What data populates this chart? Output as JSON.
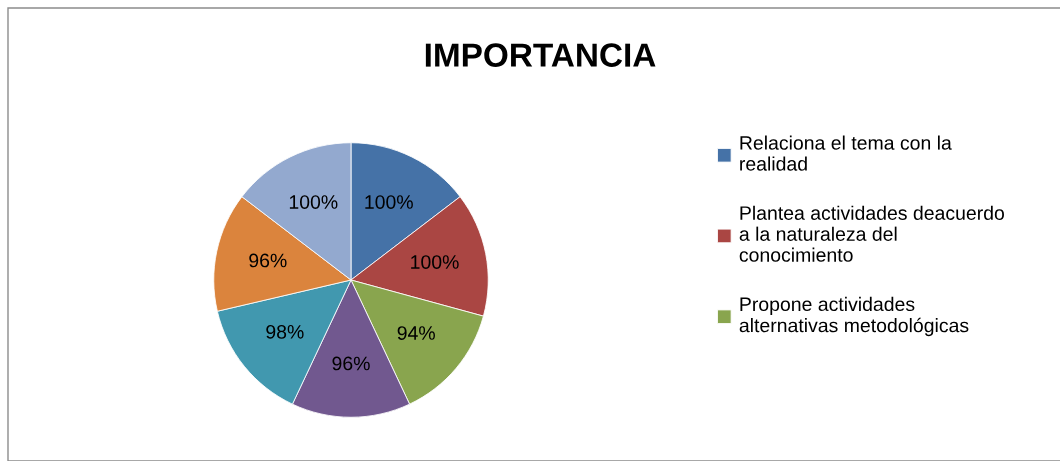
{
  "chart_data": {
    "type": "pie",
    "title": "IMPORTANCIA",
    "categories": [
      "Relaciona el tema con la realidad",
      "Plantea actividades deacuerdo a la naturaleza del conocimiento",
      "Propone actividades alternativas metodológicas",
      null,
      null,
      null,
      null
    ],
    "values": [
      100,
      100,
      94,
      96,
      98,
      96,
      100
    ],
    "value_labels": [
      "100%",
      "100%",
      "94%",
      "96%",
      "98%",
      "96%",
      "100%"
    ],
    "colors": [
      "#4572a7",
      "#aa4643",
      "#89a54e",
      "#71588f",
      "#4198af",
      "#db843d",
      "#93a9cf"
    ],
    "legend": "right"
  }
}
